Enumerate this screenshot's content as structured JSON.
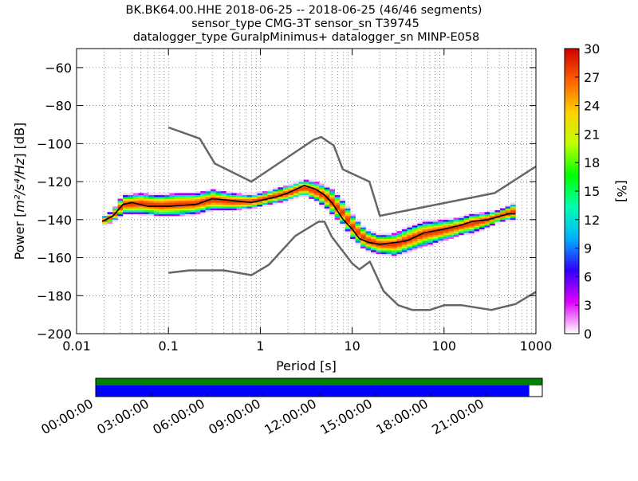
{
  "chart_data": {
    "type": "heatmap",
    "title_lines": [
      "BK.BK64.00.HHE   2018-06-25 -- 2018-06-25  (46/46 segments)",
      "sensor_type CMG-3T sensor_sn T39745",
      "datalogger_type GuralpMinimus+ datalogger_sn MINP-E058"
    ],
    "xlabel": "Period [s]",
    "ylabel_prefix": "Power [",
    "ylabel_math": "m²/s⁴/Hz",
    "ylabel_suffix": "] [dB]",
    "x_scale": "log",
    "xlim": [
      0.01,
      1000
    ],
    "ylim": [
      -200,
      -50
    ],
    "x_ticks": [
      0.01,
      0.1,
      1,
      10,
      100,
      1000
    ],
    "x_tick_labels": [
      "0.01",
      "0.1",
      "1",
      "10",
      "100",
      "1000"
    ],
    "y_ticks": [
      -200,
      -180,
      -160,
      -140,
      -120,
      -100,
      -80,
      -60
    ],
    "y_tick_labels": [
      "−200",
      "−180",
      "−160",
      "−140",
      "−120",
      "−100",
      "−80",
      "−60"
    ],
    "grid": "dotted",
    "colorbar": {
      "label": "[%]",
      "range": [
        0,
        30
      ],
      "ticks": [
        0,
        3,
        6,
        9,
        12,
        15,
        18,
        21,
        24,
        27,
        30
      ],
      "tick_labels": [
        "0",
        "3",
        "6",
        "9",
        "12",
        "15",
        "18",
        "21",
        "24",
        "27",
        "30"
      ],
      "colors": [
        "#ffffff",
        "#e000ff",
        "#3000ff",
        "#00b0ff",
        "#00ffb0",
        "#00ff00",
        "#c0ff00",
        "#ffd000",
        "#ff6000",
        "#d00000"
      ]
    },
    "series": [
      {
        "role": "mode",
        "color": "#000000",
        "points": [
          [
            0.019,
            -141
          ],
          [
            0.025,
            -138
          ],
          [
            0.032,
            -132
          ],
          [
            0.04,
            -131
          ],
          [
            0.06,
            -133
          ],
          [
            0.1,
            -133
          ],
          [
            0.2,
            -132
          ],
          [
            0.3,
            -129
          ],
          [
            0.5,
            -130
          ],
          [
            0.8,
            -131
          ],
          [
            1.0,
            -130
          ],
          [
            1.5,
            -128
          ],
          [
            2.0,
            -126
          ],
          [
            3.0,
            -122
          ],
          [
            4.0,
            -124
          ],
          [
            5.0,
            -127
          ],
          [
            6.0,
            -131
          ],
          [
            8.0,
            -140
          ],
          [
            10,
            -145
          ],
          [
            12,
            -150
          ],
          [
            15,
            -152
          ],
          [
            20,
            -153
          ],
          [
            30,
            -152
          ],
          [
            40,
            -151
          ],
          [
            60,
            -147
          ],
          [
            100,
            -145
          ],
          [
            150,
            -143
          ],
          [
            200,
            -141
          ],
          [
            300,
            -140
          ],
          [
            500,
            -137
          ],
          [
            600,
            -137
          ]
        ]
      },
      {
        "role": "high_noise_model",
        "color": "#666666",
        "points": [
          [
            0.1,
            -91.5
          ],
          [
            0.22,
            -97.4
          ],
          [
            0.32,
            -110.5
          ],
          [
            0.8,
            -120
          ],
          [
            3.8,
            -98
          ],
          [
            4.6,
            -96.5
          ],
          [
            6.3,
            -101
          ],
          [
            7.9,
            -113.5
          ],
          [
            15.4,
            -120
          ],
          [
            20,
            -138
          ],
          [
            354.8,
            -126
          ],
          [
            1000,
            -112
          ]
        ]
      },
      {
        "role": "low_noise_model",
        "color": "#666666",
        "points": [
          [
            0.1,
            -168
          ],
          [
            0.17,
            -166.7
          ],
          [
            0.4,
            -166.7
          ],
          [
            0.8,
            -169.2
          ],
          [
            1.24,
            -163.7
          ],
          [
            2.4,
            -148.6
          ],
          [
            4.3,
            -141.1
          ],
          [
            5.0,
            -141.1
          ],
          [
            6.0,
            -149
          ],
          [
            10,
            -163
          ],
          [
            12,
            -166.2
          ],
          [
            15.6,
            -162.1
          ],
          [
            21.9,
            -177.5
          ],
          [
            31.6,
            -185
          ],
          [
            45,
            -187.5
          ],
          [
            70,
            -187.5
          ],
          [
            101,
            -185
          ],
          [
            154,
            -185
          ],
          [
            328,
            -187.5
          ],
          [
            600,
            -184.4
          ],
          [
            1000,
            -178
          ]
        ]
      }
    ],
    "density_bands": [
      {
        "period": 0.019,
        "lo": -143,
        "hi": -139
      },
      {
        "period": 0.025,
        "lo": -141,
        "hi": -135
      },
      {
        "period": 0.032,
        "lo": -137,
        "hi": -127
      },
      {
        "period": 0.05,
        "lo": -137,
        "hi": -126
      },
      {
        "period": 0.08,
        "lo": -138,
        "hi": -127
      },
      {
        "period": 0.12,
        "lo": -138,
        "hi": -126
      },
      {
        "period": 0.2,
        "lo": -137,
        "hi": -126
      },
      {
        "period": 0.3,
        "lo": -135,
        "hi": -124
      },
      {
        "period": 0.5,
        "lo": -135,
        "hi": -126
      },
      {
        "period": 0.8,
        "lo": -134,
        "hi": -127
      },
      {
        "period": 1.2,
        "lo": -132,
        "hi": -125
      },
      {
        "period": 2.0,
        "lo": -130,
        "hi": -122
      },
      {
        "period": 3.0,
        "lo": -127,
        "hi": -119
      },
      {
        "period": 4.0,
        "lo": -130,
        "hi": -120
      },
      {
        "period": 5.0,
        "lo": -133,
        "hi": -122
      },
      {
        "period": 6.0,
        "lo": -137,
        "hi": -124
      },
      {
        "period": 8.0,
        "lo": -143,
        "hi": -130
      },
      {
        "period": 10,
        "lo": -150,
        "hi": -137
      },
      {
        "period": 14,
        "lo": -156,
        "hi": -145
      },
      {
        "period": 20,
        "lo": -158,
        "hi": -148
      },
      {
        "period": 30,
        "lo": -159,
        "hi": -147
      },
      {
        "period": 40,
        "lo": -157,
        "hi": -144
      },
      {
        "period": 60,
        "lo": -154,
        "hi": -141
      },
      {
        "period": 100,
        "lo": -151,
        "hi": -140
      },
      {
        "period": 150,
        "lo": -148,
        "hi": -139
      },
      {
        "period": 200,
        "lo": -147,
        "hi": -137
      },
      {
        "period": 300,
        "lo": -144,
        "hi": -136
      },
      {
        "period": 400,
        "lo": -141,
        "hi": -135
      },
      {
        "period": 600,
        "lo": -140,
        "hi": -131
      }
    ],
    "timeline": {
      "labels": [
        "00:00:00",
        "03:00:00",
        "06:00:00",
        "09:00:00",
        "12:00:00",
        "15:00:00",
        "18:00:00",
        "21:00:00"
      ],
      "label_hours": [
        0,
        3,
        6,
        9,
        12,
        15,
        18,
        21
      ],
      "hours_span": 24,
      "data_available_hours": [
        0,
        24
      ],
      "segments_used_hours": [
        0,
        23.3
      ],
      "data_available_color": "#007f00",
      "segments_used_color": "#0000ff"
    }
  }
}
